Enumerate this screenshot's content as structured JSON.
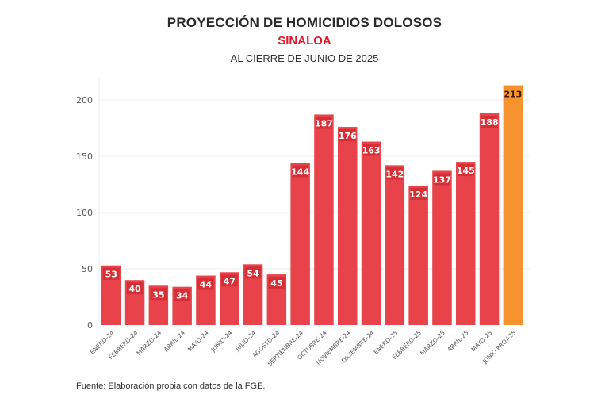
{
  "header": {
    "title": "PROYECCIÓN DE HOMICIDIOS DOLOSOS",
    "subtitle": "SINALOA",
    "subtitle2": "AL CIERRE DE JUNIO DE 2025"
  },
  "footer": {
    "source": "Fuente: Elaboración propia con datos de la FGE."
  },
  "colors": {
    "bar": "#e8434a",
    "bar_label_bg": "#d52e35",
    "projection_bar": "#f7932e",
    "projection_label": "#3a1a00",
    "subtitle": "#e3182d",
    "grid": "#eeeeee"
  },
  "chart_data": {
    "type": "bar",
    "title": "PROYECCIÓN DE HOMICIDIOS DOLOSOS",
    "subtitle": "SINALOA — AL CIERRE DE JUNIO DE 2025",
    "xlabel": "",
    "ylabel": "",
    "ylim": [
      0,
      220
    ],
    "yticks": [
      0,
      50,
      100,
      150,
      200
    ],
    "grid": true,
    "categories": [
      "ENERO-24",
      "FEBRERO-24",
      "MARZO-24",
      "ABRIL-24",
      "MAYO-24",
      "JUNIO-24",
      "JULIO-24",
      "AGOSTO-24",
      "SEPTIEMBRE-24",
      "OCTUBRE-24",
      "NOVIEMBRE-24",
      "DICIEMBRE-24",
      "ENERO-25",
      "FEBRERO-25",
      "MARZO-25",
      "ABRIL-25",
      "MAYO-25",
      "JUNIO PROY-25"
    ],
    "values": [
      53,
      40,
      35,
      34,
      44,
      47,
      54,
      45,
      144,
      187,
      176,
      163,
      142,
      124,
      137,
      145,
      188,
      213
    ],
    "highlight": [
      false,
      false,
      false,
      false,
      false,
      false,
      false,
      false,
      false,
      false,
      false,
      false,
      false,
      false,
      false,
      false,
      false,
      true
    ],
    "legend": "none"
  }
}
